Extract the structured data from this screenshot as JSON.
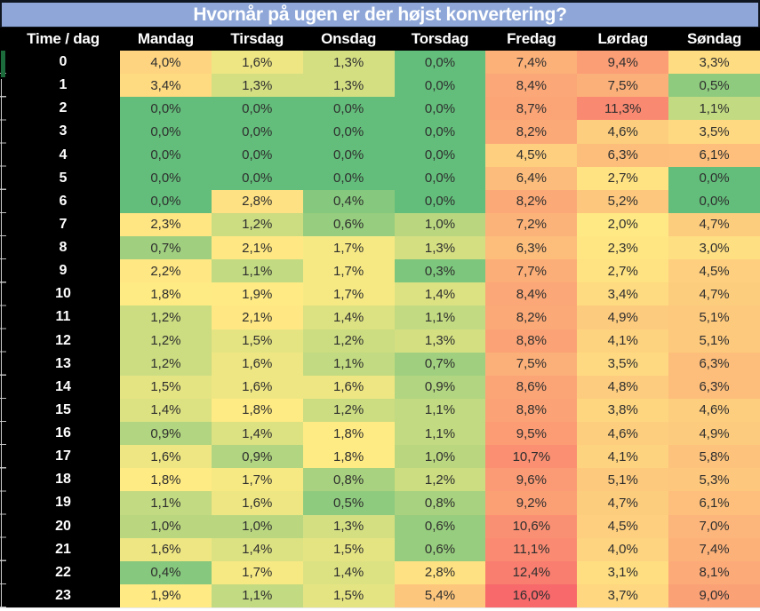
{
  "title": "Hvornår på ugen er der højst konvertering?",
  "chart_data": {
    "type": "heatmap",
    "title": "Hvornår på ugen er der højst konvertering?",
    "corner_label": "Time / dag",
    "columns": [
      "Mandag",
      "Tirsdag",
      "Onsdag",
      "Torsdag",
      "Fredag",
      "Lørdag",
      "Søndag"
    ],
    "rows": [
      "0",
      "1",
      "2",
      "3",
      "4",
      "5",
      "6",
      "7",
      "8",
      "9",
      "10",
      "11",
      "12",
      "13",
      "14",
      "15",
      "16",
      "17",
      "18",
      "19",
      "20",
      "21",
      "22",
      "23"
    ],
    "values": [
      [
        4.0,
        1.6,
        1.3,
        0.0,
        7.4,
        9.4,
        3.3
      ],
      [
        3.4,
        1.3,
        1.3,
        0.0,
        8.4,
        7.5,
        0.5
      ],
      [
        0.0,
        0.0,
        0.0,
        0.0,
        8.7,
        11.3,
        1.1
      ],
      [
        0.0,
        0.0,
        0.0,
        0.0,
        8.2,
        4.6,
        3.5
      ],
      [
        0.0,
        0.0,
        0.0,
        0.0,
        4.5,
        6.3,
        6.1
      ],
      [
        0.0,
        0.0,
        0.0,
        0.0,
        6.4,
        2.7,
        0.0
      ],
      [
        0.0,
        2.8,
        0.4,
        0.0,
        8.2,
        5.2,
        0.0
      ],
      [
        2.3,
        1.2,
        0.6,
        1.0,
        7.2,
        2.0,
        4.7
      ],
      [
        0.7,
        2.1,
        1.7,
        1.3,
        6.3,
        2.3,
        3.0
      ],
      [
        2.2,
        1.1,
        1.7,
        0.3,
        7.7,
        2.7,
        4.5
      ],
      [
        1.8,
        1.9,
        1.7,
        1.4,
        8.4,
        3.4,
        4.7
      ],
      [
        1.2,
        2.1,
        1.4,
        1.1,
        8.2,
        4.9,
        5.1
      ],
      [
        1.2,
        1.5,
        1.2,
        1.3,
        8.8,
        4.1,
        5.1
      ],
      [
        1.2,
        1.6,
        1.1,
        0.7,
        7.5,
        3.5,
        6.3
      ],
      [
        1.5,
        1.6,
        1.6,
        0.9,
        8.6,
        4.8,
        6.3
      ],
      [
        1.4,
        1.8,
        1.2,
        1.1,
        8.8,
        3.8,
        4.6
      ],
      [
        0.9,
        1.4,
        1.8,
        1.1,
        9.5,
        4.6,
        4.9
      ],
      [
        1.6,
        0.9,
        1.8,
        1.0,
        10.7,
        4.1,
        5.8
      ],
      [
        1.8,
        1.7,
        0.8,
        1.2,
        9.6,
        5.1,
        5.3
      ],
      [
        1.1,
        1.6,
        0.5,
        0.8,
        9.2,
        4.7,
        6.1
      ],
      [
        1.0,
        1.0,
        1.3,
        0.6,
        10.6,
        4.5,
        7.0
      ],
      [
        1.6,
        1.4,
        1.5,
        0.6,
        11.1,
        4.0,
        7.4
      ],
      [
        0.4,
        1.7,
        1.4,
        2.8,
        12.4,
        3.1,
        8.1
      ],
      [
        1.9,
        1.1,
        1.5,
        5.4,
        16.0,
        3.7,
        9.0
      ]
    ],
    "value_suffix": "%",
    "decimal_separator": ",",
    "color_scale": {
      "min_value": 0,
      "min_color": "#63BE7B",
      "mid_value": 1.8,
      "mid_color": "#FFEB84",
      "max_value": 14.4,
      "max_color": "#F8696B"
    }
  },
  "colors": {
    "title_bg": "#8EA7D8",
    "title_border": "#10161f",
    "header_bg": "#000000",
    "header_text": "#ffffff",
    "cell_text": "#2e2e2e",
    "gutter_green": "#1C6B3A",
    "tick": "#bdbdbd",
    "background": "#ffffff"
  }
}
